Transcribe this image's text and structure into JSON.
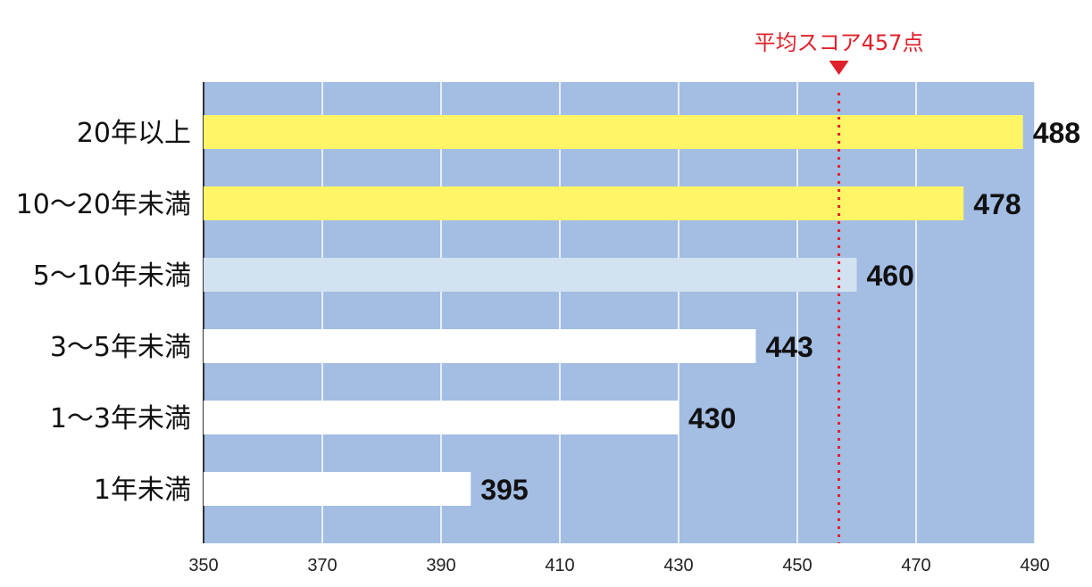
{
  "chart_data": {
    "type": "bar",
    "orientation": "horizontal",
    "categories": [
      "20年以上",
      "10〜20年未満",
      "5〜10年未満",
      "3〜5年未満",
      "1〜3年未満",
      "1年未満"
    ],
    "values": [
      488,
      478,
      460,
      443,
      430,
      395
    ],
    "bar_colors": [
      "#fff566",
      "#fff566",
      "#d3e2f1",
      "#ffffff",
      "#ffffff",
      "#ffffff"
    ],
    "xlim": [
      350,
      490
    ],
    "xticks": [
      350,
      370,
      390,
      410,
      430,
      450,
      470,
      490
    ],
    "grid": true,
    "plot_background": "#a3bde3",
    "reference_line": {
      "value": 457,
      "label": "平均スコア457点",
      "color": "#e0202a",
      "style": "dotted"
    },
    "title": "",
    "xlabel": "",
    "ylabel": ""
  }
}
